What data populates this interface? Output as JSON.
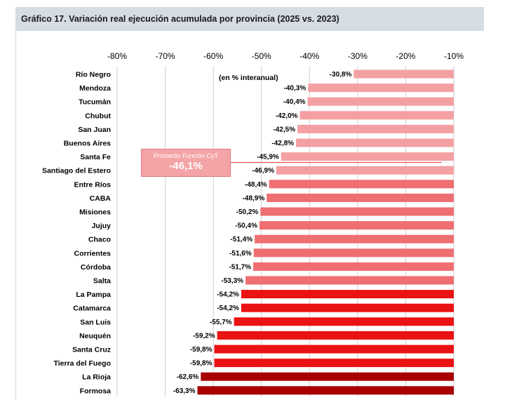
{
  "title": "Gráfico 17. Variación real ejecución acumulada por provincia (2025 vs. 2023)",
  "annotation": "(en % interanual)",
  "average": {
    "label": "Promedio Función CyT",
    "value_text": "-46,1%",
    "value": -46.1
  },
  "colors": {
    "light": "#f4a0a3",
    "medium": "#ef6e72",
    "strong": "#ea1212",
    "dark": "#a80000",
    "grid": "#cfcfcf",
    "avg_line": "#e8555a"
  },
  "chart_data": {
    "type": "bar",
    "orientation": "horizontal",
    "title": "Gráfico 17. Variación real ejecución acumulada por provincia (2025 vs. 2023)",
    "xlim": [
      -80,
      -10
    ],
    "xticks": [
      -80,
      -70,
      -60,
      -50,
      -40,
      -30,
      -20,
      -10
    ],
    "xtick_labels": [
      "-80%",
      "-70%",
      "-60%",
      "-50%",
      "-40%",
      "-30%",
      "-20%",
      "-10%"
    ],
    "bars": [
      {
        "name": "Río Negro",
        "value": -30.8,
        "label": "-30,8%",
        "color_group": "light"
      },
      {
        "name": "Mendoza",
        "value": -40.3,
        "label": "-40,3%",
        "color_group": "light"
      },
      {
        "name": "Tucumán",
        "value": -40.4,
        "label": "-40,4%",
        "color_group": "light"
      },
      {
        "name": "Chubut",
        "value": -42.0,
        "label": "-42,0%",
        "color_group": "light"
      },
      {
        "name": "San Juan",
        "value": -42.5,
        "label": "-42,5%",
        "color_group": "light"
      },
      {
        "name": "Buenos Aires",
        "value": -42.8,
        "label": "-42,8%",
        "color_group": "light"
      },
      {
        "name": "Santa Fe",
        "value": -45.9,
        "label": "-45,9%",
        "color_group": "light"
      },
      {
        "name": "Santiago del Estero",
        "value": -46.9,
        "label": "-46,9%",
        "color_group": "light"
      },
      {
        "name": "Entre Ríos",
        "value": -48.4,
        "label": "-48,4%",
        "color_group": "medium"
      },
      {
        "name": "CABA",
        "value": -48.9,
        "label": "-48,9%",
        "color_group": "medium"
      },
      {
        "name": "Misiones",
        "value": -50.2,
        "label": "-50,2%",
        "color_group": "medium"
      },
      {
        "name": "Jujuy",
        "value": -50.4,
        "label": "-50,4%",
        "color_group": "medium"
      },
      {
        "name": "Chaco",
        "value": -51.4,
        "label": "-51,4%",
        "color_group": "medium"
      },
      {
        "name": "Corrientes",
        "value": -51.6,
        "label": "-51,6%",
        "color_group": "medium"
      },
      {
        "name": "Córdoba",
        "value": -51.7,
        "label": "-51,7%",
        "color_group": "medium"
      },
      {
        "name": "Salta",
        "value": -53.3,
        "label": "-53,3%",
        "color_group": "medium"
      },
      {
        "name": "La Pampa",
        "value": -54.2,
        "label": "-54,2%",
        "color_group": "strong"
      },
      {
        "name": "Catamarca",
        "value": -54.2,
        "label": "-54,2%",
        "color_group": "strong"
      },
      {
        "name": "San Luis",
        "value": -55.7,
        "label": "-55,7%",
        "color_group": "strong"
      },
      {
        "name": "Neuquén",
        "value": -59.2,
        "label": "-59,2%",
        "color_group": "strong"
      },
      {
        "name": "Santa Cruz",
        "value": -59.8,
        "label": "-59,8%",
        "color_group": "strong"
      },
      {
        "name": "Tierra del Fuego",
        "value": -59.8,
        "label": "-59,8%",
        "color_group": "strong"
      },
      {
        "name": "La Rioja",
        "value": -62.6,
        "label": "-62,6%",
        "color_group": "dark"
      },
      {
        "name": "Formosa",
        "value": -63.3,
        "label": "-63,3%",
        "color_group": "dark"
      }
    ]
  }
}
